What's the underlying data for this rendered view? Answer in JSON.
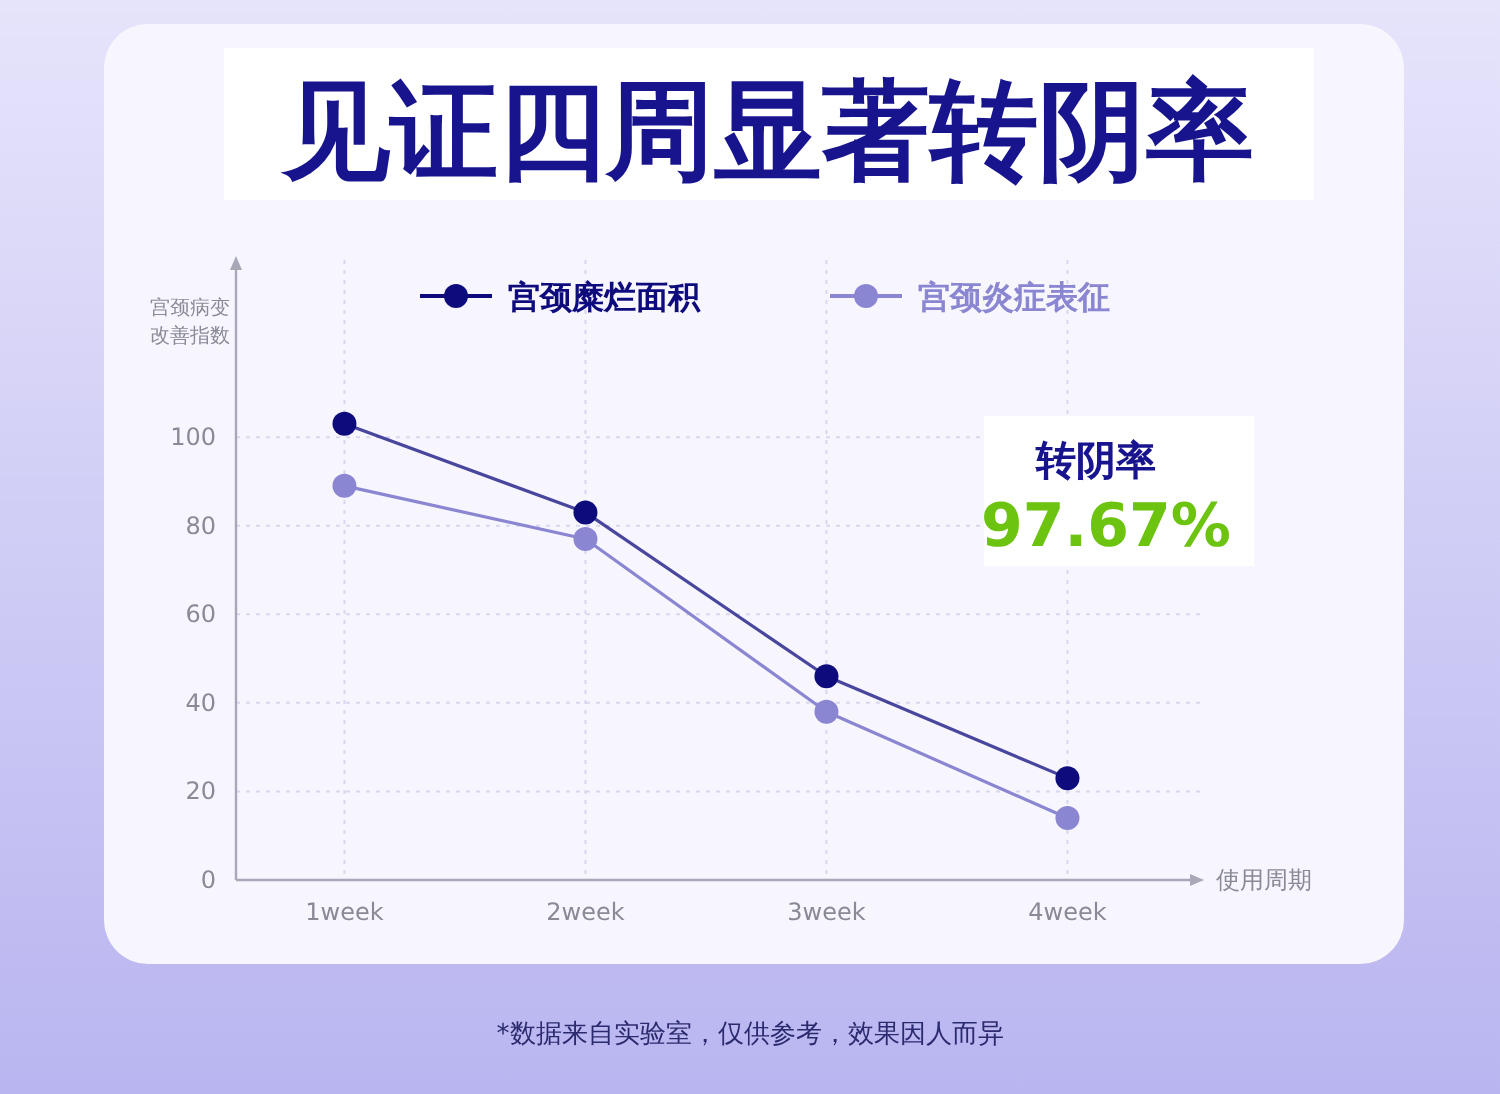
{
  "chart_data": {
    "type": "line",
    "title": "见证四周显著转阴率",
    "ylabel": "宫颈病变改善指数",
    "xlabel": "使用周期",
    "categories": [
      "1week",
      "2week",
      "3week",
      "4week"
    ],
    "series": [
      {
        "name": "宫颈糜烂面积",
        "color": "#0e0b7c",
        "values": [
          103,
          83,
          46,
          23
        ]
      },
      {
        "name": "宫颈炎症表征",
        "color": "#8a86d2",
        "values": [
          89,
          77,
          38,
          14
        ]
      }
    ],
    "ylim": [
      0,
      140
    ],
    "yticks": [
      0,
      20,
      40,
      60,
      80,
      100
    ],
    "grid": true,
    "legend": "top",
    "marker": "circle",
    "line_style": "solid",
    "annotations": [
      "转阴率",
      "97.67%",
      "*数据来自实验室，仅供参考，效果因人而异"
    ]
  }
}
